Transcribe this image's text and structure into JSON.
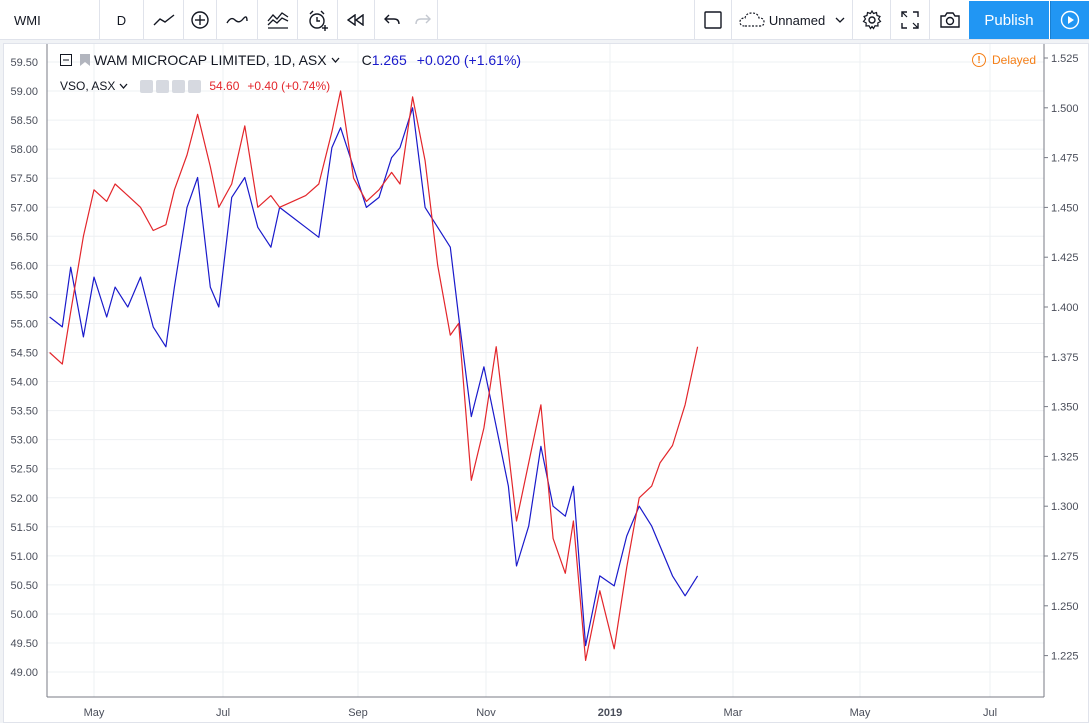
{
  "toolbar": {
    "symbol": "WMI",
    "interval": "D",
    "layout_name": "Unnamed",
    "publish_label": "Publish"
  },
  "legend": {
    "main_title": "WAM MICROCAP LIMITED, 1D, ASX",
    "main_close_prefix": "C",
    "main_close": "1.265",
    "main_change": "+0.020 (+1.61%)",
    "compare_symbol": "VSO, ASX",
    "compare_value": "54.60",
    "compare_change": "+0.40 (+0.74%)",
    "delayed_label": "Delayed"
  },
  "colors": {
    "main_series": "#1a1acb",
    "compare_series": "#e3262b",
    "delayed": "#f57f17",
    "publish": "#2196f3"
  },
  "chart_data": {
    "type": "line",
    "x_labels": [
      "May",
      "Jul",
      "Sep",
      "Nov",
      "2019",
      "Mar",
      "May",
      "Jul"
    ],
    "left_axis": {
      "ylim": [
        49.0,
        59.5
      ],
      "ticks": [
        "59.50",
        "59.00",
        "58.50",
        "58.00",
        "57.50",
        "57.00",
        "56.50",
        "56.00",
        "55.50",
        "55.00",
        "54.50",
        "54.00",
        "53.50",
        "53.00",
        "52.50",
        "52.00",
        "51.50",
        "51.00",
        "50.50",
        "50.00",
        "49.50",
        "49.00"
      ]
    },
    "right_axis": {
      "ylim": [
        1.225,
        1.525
      ],
      "ticks": [
        "1.525",
        "1.500",
        "1.475",
        "1.450",
        "1.425",
        "1.400",
        "1.375",
        "1.350",
        "1.325",
        "1.300",
        "1.275",
        "1.250",
        "1.225"
      ]
    },
    "grid": true,
    "series": [
      {
        "name": "WAM MICROCAP LIMITED",
        "axis": "right",
        "x": [
          "2018-04-10",
          "2018-04-16",
          "2018-04-20",
          "2018-04-26",
          "2018-05-01",
          "2018-05-07",
          "2018-05-11",
          "2018-05-17",
          "2018-05-23",
          "2018-05-29",
          "2018-06-04",
          "2018-06-08",
          "2018-06-14",
          "2018-06-19",
          "2018-06-25",
          "2018-06-29",
          "2018-07-05",
          "2018-07-11",
          "2018-07-17",
          "2018-07-23",
          "2018-07-27",
          "2018-08-02",
          "2018-08-08",
          "2018-08-14",
          "2018-08-20",
          "2018-08-24",
          "2018-08-30",
          "2018-09-05",
          "2018-09-11",
          "2018-09-17",
          "2018-09-21",
          "2018-09-27",
          "2018-10-03",
          "2018-10-09",
          "2018-10-15",
          "2018-10-19",
          "2018-10-25",
          "2018-10-31",
          "2018-11-06",
          "2018-11-12",
          "2018-11-16",
          "2018-11-22",
          "2018-11-28",
          "2018-12-04",
          "2018-12-10",
          "2018-12-14",
          "2018-12-20",
          "2018-12-27",
          "2019-01-03",
          "2019-01-09",
          "2019-01-15",
          "2019-01-21",
          "2019-01-25",
          "2019-01-31",
          "2019-02-06",
          "2019-02-12"
        ],
        "values": [
          1.395,
          1.39,
          1.42,
          1.385,
          1.415,
          1.395,
          1.41,
          1.4,
          1.415,
          1.39,
          1.38,
          1.41,
          1.45,
          1.465,
          1.41,
          1.4,
          1.455,
          1.465,
          1.44,
          1.43,
          1.45,
          1.445,
          1.44,
          1.435,
          1.48,
          1.49,
          1.47,
          1.45,
          1.455,
          1.475,
          1.48,
          1.5,
          1.45,
          1.44,
          1.43,
          1.395,
          1.345,
          1.37,
          1.34,
          1.31,
          1.27,
          1.29,
          1.33,
          1.3,
          1.295,
          1.31,
          1.23,
          1.265,
          1.26,
          1.285,
          1.3,
          1.29,
          1.28,
          1.265,
          1.255,
          1.265
        ]
      },
      {
        "name": "VSO, ASX",
        "axis": "left",
        "x": [
          "2018-04-10",
          "2018-04-16",
          "2018-04-20",
          "2018-04-26",
          "2018-05-01",
          "2018-05-07",
          "2018-05-11",
          "2018-05-17",
          "2018-05-23",
          "2018-05-29",
          "2018-06-04",
          "2018-06-08",
          "2018-06-14",
          "2018-06-19",
          "2018-06-25",
          "2018-06-29",
          "2018-07-05",
          "2018-07-11",
          "2018-07-17",
          "2018-07-23",
          "2018-07-27",
          "2018-08-02",
          "2018-08-08",
          "2018-08-14",
          "2018-08-20",
          "2018-08-24",
          "2018-08-30",
          "2018-09-05",
          "2018-09-11",
          "2018-09-17",
          "2018-09-21",
          "2018-09-27",
          "2018-10-03",
          "2018-10-09",
          "2018-10-15",
          "2018-10-19",
          "2018-10-25",
          "2018-10-31",
          "2018-11-06",
          "2018-11-12",
          "2018-11-16",
          "2018-11-22",
          "2018-11-28",
          "2018-12-04",
          "2018-12-10",
          "2018-12-14",
          "2018-12-20",
          "2018-12-27",
          "2019-01-03",
          "2019-01-09",
          "2019-01-15",
          "2019-01-21",
          "2019-01-25",
          "2019-01-31",
          "2019-02-06",
          "2019-02-12"
        ],
        "values": [
          54.5,
          54.3,
          55.2,
          56.5,
          57.3,
          57.1,
          57.4,
          57.2,
          57.0,
          56.6,
          56.7,
          57.3,
          57.9,
          58.6,
          57.7,
          57.0,
          57.4,
          58.4,
          57.0,
          57.2,
          57.0,
          57.1,
          57.2,
          57.4,
          58.3,
          59.0,
          57.5,
          57.1,
          57.3,
          57.6,
          57.4,
          58.9,
          57.8,
          56.0,
          54.8,
          55.0,
          52.3,
          53.2,
          54.6,
          52.8,
          51.6,
          52.6,
          53.6,
          51.3,
          50.7,
          51.6,
          49.2,
          50.4,
          49.4,
          50.8,
          52.0,
          52.2,
          52.6,
          52.9,
          53.6,
          54.6
        ]
      }
    ]
  }
}
